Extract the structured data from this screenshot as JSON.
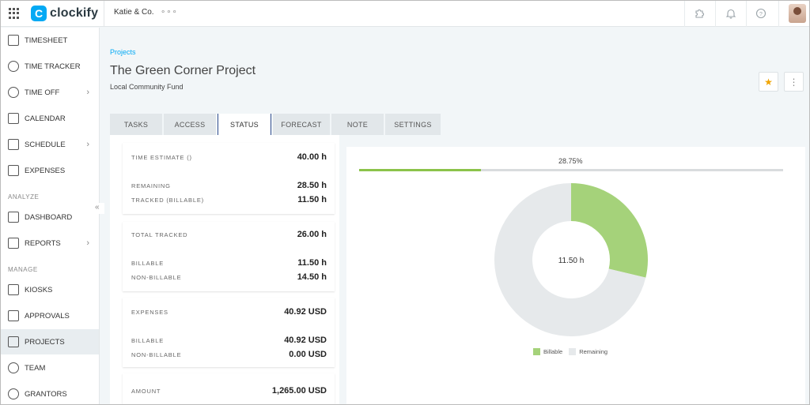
{
  "app": {
    "brand": "clockify",
    "logo_letter": "C",
    "workspace": "Katie & Co.",
    "workspace_menu": "∘∘∘"
  },
  "sidebar": {
    "items": [
      {
        "label": "TIMESHEET",
        "icon": "timesheet-icon"
      },
      {
        "label": "TIME TRACKER",
        "icon": "clock-icon"
      },
      {
        "label": "TIME OFF",
        "icon": "time-off-icon",
        "chevron": "›"
      },
      {
        "label": "CALENDAR",
        "icon": "calendar-icon"
      },
      {
        "label": "SCHEDULE",
        "icon": "schedule-icon",
        "chevron": "›"
      },
      {
        "label": "EXPENSES",
        "icon": "expenses-icon"
      },
      {
        "label": "DASHBOARD",
        "icon": "dashboard-icon"
      },
      {
        "label": "REPORTS",
        "icon": "reports-icon",
        "chevron": "›"
      },
      {
        "label": "KIOSKS",
        "icon": "kiosk-icon"
      },
      {
        "label": "APPROVALS",
        "icon": "approvals-icon"
      },
      {
        "label": "PROJECTS",
        "icon": "projects-icon"
      },
      {
        "label": "TEAM",
        "icon": "team-icon"
      },
      {
        "label": "GRANTORS",
        "icon": "grantors-icon"
      }
    ],
    "section_analyze": "ANALYZE",
    "section_manage": "MANAGE",
    "collapse_glyph": "«"
  },
  "header": {
    "breadcrumb": "Projects",
    "title": "The Green Corner Project",
    "subtitle": "Local Community Fund",
    "star_glyph": "★",
    "more_glyph": "⋮"
  },
  "tabs": [
    {
      "label": "TASKS"
    },
    {
      "label": "ACCESS"
    },
    {
      "label": "STATUS",
      "active": true
    },
    {
      "label": "FORECAST"
    },
    {
      "label": "NOTE"
    },
    {
      "label": "SETTINGS"
    }
  ],
  "status": {
    "time_estimate_label": "TIME ESTIMATE ()",
    "time_estimate_value": "40.00 h",
    "remaining_label": "REMAINING",
    "remaining_value": "28.50 h",
    "tracked_billable_label": "TRACKED (BILLABLE)",
    "tracked_billable_value": "11.50 h",
    "total_tracked_label": "TOTAL TRACKED",
    "total_tracked_value": "26.00 h",
    "billable_label": "BILLABLE",
    "billable_value": "11.50 h",
    "non_billable_label": "NON-BILLABLE",
    "non_billable_value": "14.50 h",
    "expenses_label": "EXPENSES",
    "expenses_value": "40.92 USD",
    "exp_billable_label": "BILLABLE",
    "exp_billable_value": "40.92 USD",
    "exp_non_billable_label": "NON-BILLABLE",
    "exp_non_billable_value": "0.00 USD",
    "amount_label": "AMOUNT",
    "amount_value": "1,265.00 USD"
  },
  "progress": {
    "label": "28.75%",
    "fraction": 0.2875
  },
  "colors": {
    "accent": "#03a9f4",
    "billable": "#a5d27a",
    "remaining": "#e6e9eb",
    "tab_active_border": "#2c4a8c",
    "progress_fill": "#8bc34a"
  },
  "chart_data": {
    "type": "pie",
    "center_label": "11.50 h",
    "categories": [
      "Billable",
      "Remaining"
    ],
    "values": [
      11.5,
      28.5
    ],
    "legend_position": "bottom"
  }
}
